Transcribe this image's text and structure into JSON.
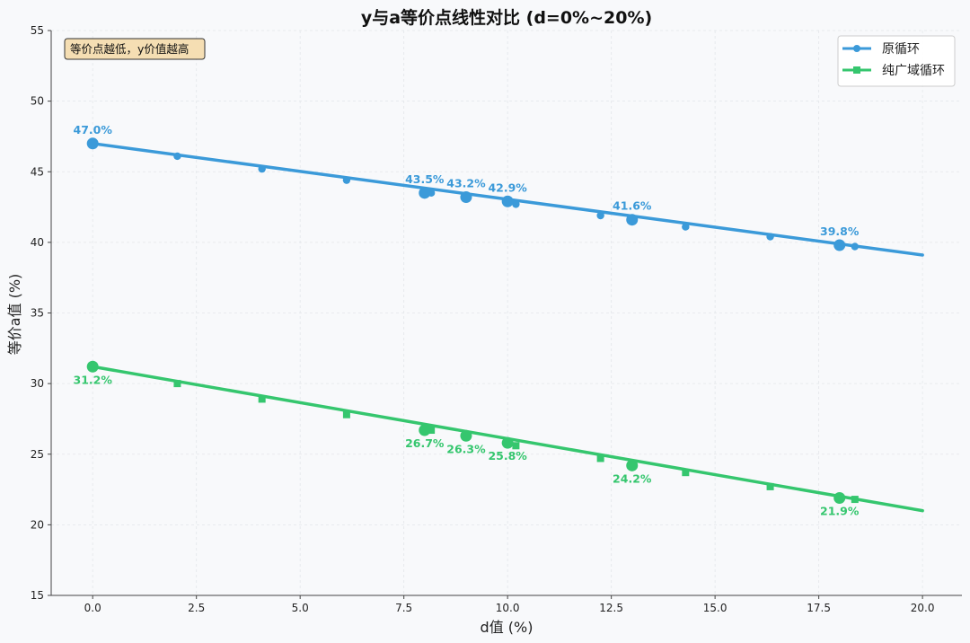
{
  "chart_data": {
    "type": "line",
    "title": "y与a等价点线性对比 (d=0%~20%)",
    "xlabel": "d值 (%)",
    "ylabel": "等价a值 (%)",
    "xlim": [
      -1.0,
      20.95
    ],
    "ylim": [
      15,
      55
    ],
    "x_ticks": [
      0.0,
      2.5,
      5.0,
      7.5,
      10.0,
      12.5,
      15.0,
      17.5,
      20.0
    ],
    "x_tick_labels": [
      "0.0",
      "2.5",
      "5.0",
      "7.5",
      "10.0",
      "12.5",
      "15.0",
      "17.5",
      "20.0"
    ],
    "y_ticks": [
      15,
      20,
      25,
      30,
      35,
      40,
      45,
      50,
      55
    ],
    "y_tick_labels": [
      "15",
      "20",
      "25",
      "30",
      "35",
      "40",
      "45",
      "50",
      "55"
    ],
    "grid": true,
    "legend_position": "top-right",
    "note": "等价点越低，y价值越高",
    "series": [
      {
        "name": "原循环",
        "color": "#3b9ad9",
        "marker": "circle",
        "line": {
          "x": [
            0,
            20
          ],
          "y": [
            47.0,
            39.1
          ]
        },
        "markers": {
          "x": [
            0,
            2.04,
            4.08,
            6.12,
            8.16,
            10.2,
            12.24,
            14.29,
            16.33,
            18.37
          ],
          "y": [
            47.0,
            46.1,
            45.2,
            44.4,
            43.5,
            42.7,
            41.9,
            41.1,
            40.4,
            39.7
          ]
        },
        "highlights": [
          {
            "x": 0,
            "y": 47.0,
            "label": "47.0%"
          },
          {
            "x": 8,
            "y": 43.5,
            "label": "43.5%"
          },
          {
            "x": 9,
            "y": 43.2,
            "label": "43.2%"
          },
          {
            "x": 10,
            "y": 42.9,
            "label": "42.9%"
          },
          {
            "x": 13,
            "y": 41.6,
            "label": "41.6%"
          },
          {
            "x": 18,
            "y": 39.8,
            "label": "39.8%"
          }
        ]
      },
      {
        "name": "纯广域循环",
        "color": "#35c66e",
        "marker": "square",
        "line": {
          "x": [
            0,
            20
          ],
          "y": [
            31.2,
            21.0
          ]
        },
        "markers": {
          "x": [
            0,
            2.04,
            4.08,
            6.12,
            8.16,
            10.2,
            12.24,
            14.29,
            16.33,
            18.37
          ],
          "y": [
            31.2,
            30.0,
            28.9,
            27.8,
            26.7,
            25.6,
            24.7,
            23.7,
            22.7,
            21.8
          ]
        },
        "highlights": [
          {
            "x": 0,
            "y": 31.2,
            "label": "31.2%"
          },
          {
            "x": 8,
            "y": 26.7,
            "label": "26.7%"
          },
          {
            "x": 9,
            "y": 26.3,
            "label": "26.3%"
          },
          {
            "x": 10,
            "y": 25.8,
            "label": "25.8%"
          },
          {
            "x": 13,
            "y": 24.2,
            "label": "24.2%"
          },
          {
            "x": 18,
            "y": 21.9,
            "label": "21.9%"
          }
        ]
      }
    ]
  }
}
